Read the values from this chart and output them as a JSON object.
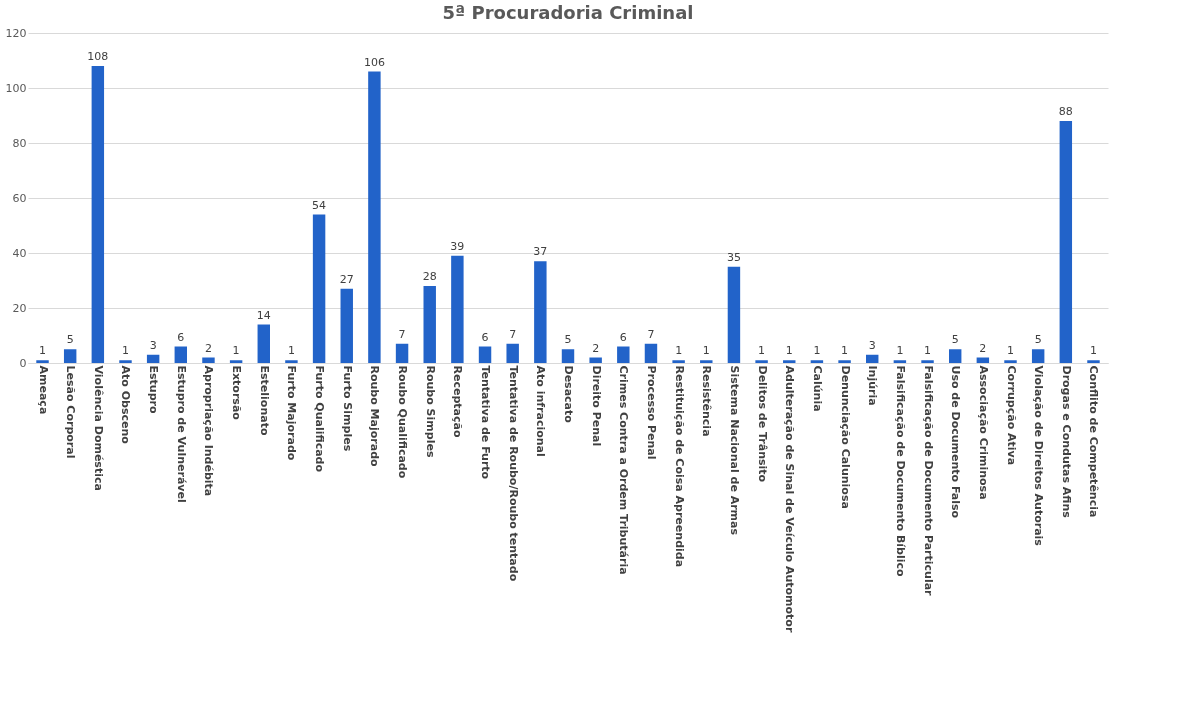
{
  "chart_data": {
    "type": "bar",
    "title": "5ª Procuradoria Criminal",
    "categories": [
      "Ameaça",
      "Lesão Corporal",
      "Violência Doméstica",
      "Ato Obsceno",
      "Estupro",
      "Estupro de Vulnerável",
      "Apropriação Indébita",
      "Extorsão",
      "Estelionato",
      "Furto Majorado",
      "Furto Qualificado",
      "Furto Simples",
      "Roubo Majorado",
      "Roubo Qualificado",
      "Roubo Simples",
      "Receptação",
      "Tentativa de Furto",
      "Tentativa de Roubo/Roubo tentado",
      "Ato infracional",
      "Desacato",
      "Direito Penal",
      "Crimes Contra a Ordem Tributária",
      "Processo Penal",
      "Restituição de Coisa Apreendida",
      "Resistência",
      "Sistema Nacional de Armas",
      "Delitos de Trânsito",
      "Adulteração de Sinal de Veículo Automotor",
      "Calúnia",
      "Denunciação Caluniosa",
      "Injúria",
      "Falsificação de Documento Bíblico",
      "Falsificação de Documento Particular",
      "Uso de Documento Falso",
      "Associação Criminosa",
      "Corrupção Ativa",
      "Violação de Direitos Autorais",
      "Drogas e Condutas Afins",
      "Conflito de Competência"
    ],
    "values": [
      1,
      5,
      108,
      1,
      3,
      6,
      2,
      1,
      14,
      1,
      54,
      27,
      106,
      7,
      28,
      39,
      6,
      7,
      37,
      5,
      2,
      6,
      7,
      1,
      1,
      35,
      1,
      1,
      1,
      1,
      3,
      1,
      1,
      5,
      2,
      1,
      5,
      88,
      1
    ],
    "color": "#2263c9",
    "ylim": [
      0,
      120
    ],
    "yticks": [
      0,
      20,
      40,
      60,
      80,
      100,
      120
    ],
    "grid": "y",
    "data_labels": true
  }
}
